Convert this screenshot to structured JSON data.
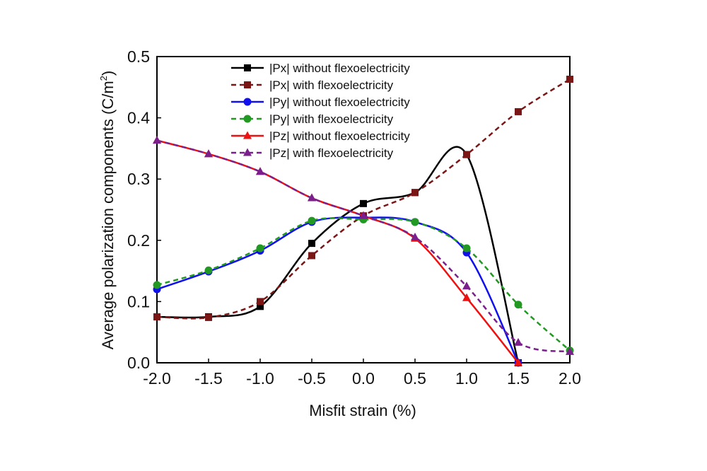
{
  "chart_data": {
    "type": "line",
    "title": "",
    "xlabel": "Misfit strain (%)",
    "ylabel_main": "Average polarization components (C/m",
    "ylabel_sup": "2",
    "ylabel_end": ")",
    "xlim": [
      -2.0,
      2.0
    ],
    "ylim": [
      0.0,
      0.5
    ],
    "x_ticks": [
      -2.0,
      -1.5,
      -1.0,
      -0.5,
      0.0,
      0.5,
      1.0,
      1.5,
      2.0
    ],
    "x_tick_labels": [
      "-2.0",
      "-1.5",
      "-1.0",
      "-0.5",
      "0.0",
      "0.5",
      "1.0",
      "1.5",
      "2.0"
    ],
    "y_ticks": [
      0.0,
      0.1,
      0.2,
      0.3,
      0.4,
      0.5
    ],
    "y_tick_labels": [
      "0.0",
      "0.1",
      "0.2",
      "0.3",
      "0.4",
      "0.5"
    ],
    "grid": false,
    "legend_position": "top-center",
    "series": [
      {
        "name": "|Px| without flexoelectricity",
        "color": "#000000",
        "dash": "solid",
        "marker": "square",
        "x": [
          -2.0,
          -1.5,
          -1.0,
          -0.5,
          0.0,
          0.5,
          1.0,
          1.5
        ],
        "y": [
          0.075,
          0.075,
          0.092,
          0.195,
          0.26,
          0.278,
          0.34,
          0.0
        ]
      },
      {
        "name": "|Px| with flexoelectricity",
        "color": "#7a1616",
        "dash": "dashed",
        "marker": "square",
        "x": [
          -2.0,
          -1.5,
          -1.0,
          -0.5,
          0.0,
          0.5,
          1.0,
          1.5,
          2.0
        ],
        "y": [
          0.075,
          0.074,
          0.1,
          0.175,
          0.24,
          0.278,
          0.34,
          0.41,
          0.463
        ]
      },
      {
        "name": "|Py| without flexoelectricity",
        "color": "#1010ee",
        "dash": "solid",
        "marker": "circle",
        "x": [
          -2.0,
          -1.5,
          -1.0,
          -0.5,
          0.0,
          0.5,
          1.0,
          1.5
        ],
        "y": [
          0.12,
          0.149,
          0.183,
          0.23,
          0.237,
          0.23,
          0.18,
          0.0
        ]
      },
      {
        "name": "|Py| with flexoelectricity",
        "color": "#229922",
        "dash": "dashed",
        "marker": "circle",
        "x": [
          -2.0,
          -1.5,
          -1.0,
          -0.5,
          0.0,
          0.5,
          1.0,
          1.5,
          2.0
        ],
        "y": [
          0.127,
          0.151,
          0.187,
          0.232,
          0.234,
          0.23,
          0.187,
          0.095,
          0.02
        ]
      },
      {
        "name": "|Pz| without flexoelectricity",
        "color": "#ee1111",
        "dash": "solid",
        "marker": "triangle",
        "x": [
          -2.0,
          -1.5,
          -1.0,
          -0.5,
          0.0,
          0.5,
          1.0,
          1.5
        ],
        "y": [
          0.363,
          0.341,
          0.312,
          0.269,
          0.24,
          0.203,
          0.106,
          0.0
        ]
      },
      {
        "name": "|Pz| with flexoelectricity",
        "color": "#7a1f8c",
        "dash": "dashed",
        "marker": "triangle",
        "x": [
          -2.0,
          -1.5,
          -1.0,
          -0.5,
          0.0,
          0.5,
          1.0,
          1.5,
          2.0
        ],
        "y": [
          0.363,
          0.341,
          0.312,
          0.269,
          0.24,
          0.205,
          0.125,
          0.033,
          0.018
        ]
      }
    ]
  }
}
